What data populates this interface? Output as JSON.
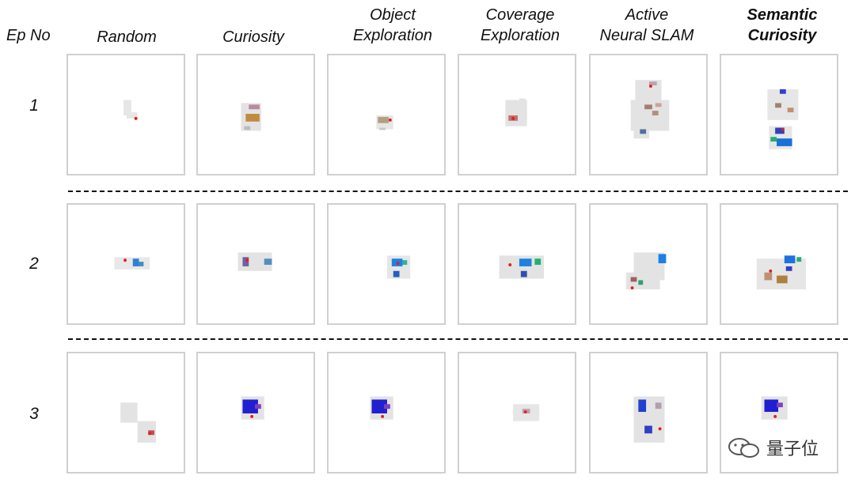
{
  "header": {
    "ep_label": "Ep No",
    "methods": [
      {
        "lines": [
          "Random"
        ]
      },
      {
        "lines": [
          "Curiosity"
        ]
      },
      {
        "lines": [
          "Object",
          "Exploration"
        ]
      },
      {
        "lines": [
          "Coverage",
          "Exploration"
        ]
      },
      {
        "lines": [
          "Active",
          "Neural SLAM"
        ]
      },
      {
        "lines": [
          "Semantic",
          "Curiosity"
        ]
      }
    ]
  },
  "rows": [
    {
      "label": "1"
    },
    {
      "label": "2"
    },
    {
      "label": "3"
    }
  ],
  "watermark": {
    "text": "量子位"
  }
}
